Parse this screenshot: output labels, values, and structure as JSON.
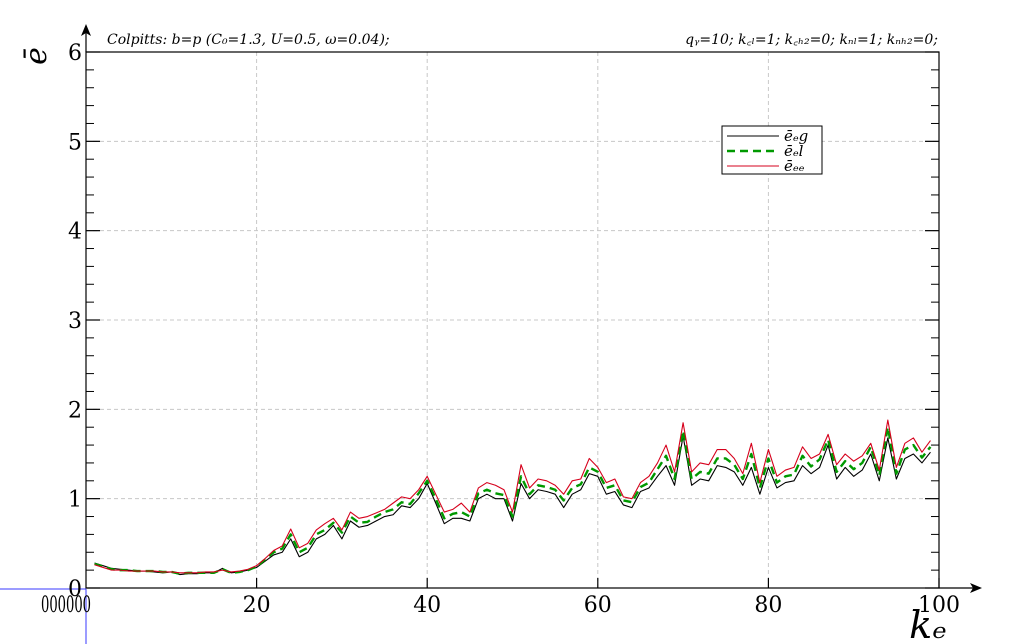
{
  "header": {
    "left": "Colpitts: b=p (C₀=1.3, U=0.5, ω=0.04);",
    "right": "qᵧ=10; k꜀ₗ=1; k꜀ₕ₂=0; kₙₗ=1; kₙₕ₂=0;"
  },
  "origin_labels": "000000",
  "chart_data": {
    "type": "line",
    "xlabel": "kₑ",
    "ylabel": "ē",
    "xlim": [
      0,
      100
    ],
    "ylim": [
      0,
      6
    ],
    "x_ticks": [
      20,
      40,
      60,
      80,
      100
    ],
    "y_ticks": [
      0,
      1,
      2,
      3,
      4,
      5,
      6
    ],
    "grid": true,
    "legend_position": "top-right",
    "x": [
      1,
      2,
      3,
      4,
      5,
      6,
      7,
      8,
      9,
      10,
      11,
      12,
      13,
      14,
      15,
      16,
      17,
      18,
      19,
      20,
      21,
      22,
      23,
      24,
      25,
      26,
      27,
      28,
      29,
      30,
      31,
      32,
      33,
      34,
      35,
      36,
      37,
      38,
      39,
      40,
      41,
      42,
      43,
      44,
      45,
      46,
      47,
      48,
      49,
      50,
      51,
      52,
      53,
      54,
      55,
      56,
      57,
      58,
      59,
      60,
      61,
      62,
      63,
      64,
      65,
      66,
      67,
      68,
      69,
      70,
      71,
      72,
      73,
      74,
      75,
      76,
      77,
      78,
      79,
      80,
      81,
      82,
      83,
      84,
      85,
      86,
      87,
      88,
      89,
      90,
      91,
      92,
      93,
      94,
      95,
      96,
      97,
      98,
      99
    ],
    "series": [
      {
        "name": "ēₑg",
        "color": "#000000",
        "dash": "solid",
        "values": [
          0.28,
          0.25,
          0.22,
          0.21,
          0.2,
          0.19,
          0.19,
          0.18,
          0.17,
          0.18,
          0.15,
          0.16,
          0.16,
          0.17,
          0.17,
          0.22,
          0.17,
          0.18,
          0.2,
          0.23,
          0.3,
          0.37,
          0.4,
          0.55,
          0.35,
          0.4,
          0.55,
          0.6,
          0.7,
          0.55,
          0.75,
          0.68,
          0.7,
          0.75,
          0.8,
          0.82,
          0.92,
          0.9,
          1.0,
          1.17,
          0.95,
          0.72,
          0.78,
          0.78,
          0.75,
          1.0,
          1.05,
          1.0,
          1.0,
          0.75,
          1.17,
          1.0,
          1.1,
          1.08,
          1.05,
          0.9,
          1.05,
          1.1,
          1.28,
          1.25,
          1.05,
          1.08,
          0.93,
          0.9,
          1.08,
          1.12,
          1.25,
          1.37,
          1.15,
          1.7,
          1.15,
          1.22,
          1.2,
          1.37,
          1.35,
          1.3,
          1.15,
          1.35,
          1.05,
          1.35,
          1.12,
          1.18,
          1.2,
          1.37,
          1.28,
          1.35,
          1.6,
          1.22,
          1.35,
          1.25,
          1.32,
          1.5,
          1.2,
          1.68,
          1.22,
          1.45,
          1.5,
          1.4,
          1.52
        ]
      },
      {
        "name": "ēₑl",
        "color": "#009900",
        "dash": "dashed",
        "values": [
          0.27,
          0.24,
          0.21,
          0.2,
          0.2,
          0.19,
          0.19,
          0.19,
          0.18,
          0.18,
          0.16,
          0.17,
          0.17,
          0.17,
          0.17,
          0.21,
          0.17,
          0.18,
          0.2,
          0.24,
          0.32,
          0.4,
          0.44,
          0.6,
          0.4,
          0.45,
          0.6,
          0.65,
          0.73,
          0.62,
          0.8,
          0.73,
          0.74,
          0.8,
          0.85,
          0.88,
          0.96,
          0.94,
          1.06,
          1.2,
          1.0,
          0.78,
          0.83,
          0.85,
          0.8,
          1.06,
          1.1,
          1.06,
          1.04,
          0.8,
          1.25,
          1.05,
          1.15,
          1.13,
          1.1,
          0.98,
          1.12,
          1.16,
          1.35,
          1.3,
          1.12,
          1.15,
          0.98,
          0.96,
          1.13,
          1.18,
          1.33,
          1.48,
          1.22,
          1.76,
          1.22,
          1.3,
          1.28,
          1.45,
          1.45,
          1.38,
          1.22,
          1.5,
          1.12,
          1.45,
          1.18,
          1.25,
          1.27,
          1.48,
          1.36,
          1.44,
          1.66,
          1.3,
          1.42,
          1.33,
          1.4,
          1.58,
          1.26,
          1.8,
          1.28,
          1.55,
          1.6,
          1.46,
          1.58
        ]
      },
      {
        "name": "ēₑₑ",
        "color": "#d6001c",
        "dash": "solid",
        "values": [
          0.26,
          0.23,
          0.2,
          0.2,
          0.19,
          0.19,
          0.19,
          0.19,
          0.18,
          0.18,
          0.17,
          0.17,
          0.17,
          0.18,
          0.18,
          0.2,
          0.18,
          0.19,
          0.21,
          0.25,
          0.33,
          0.42,
          0.47,
          0.66,
          0.45,
          0.5,
          0.65,
          0.72,
          0.78,
          0.65,
          0.85,
          0.78,
          0.8,
          0.84,
          0.88,
          0.95,
          1.02,
          1.0,
          1.1,
          1.25,
          1.05,
          0.85,
          0.88,
          0.95,
          0.85,
          1.12,
          1.18,
          1.15,
          1.1,
          0.85,
          1.38,
          1.12,
          1.22,
          1.2,
          1.15,
          1.05,
          1.2,
          1.22,
          1.45,
          1.35,
          1.18,
          1.22,
          1.02,
          1.0,
          1.18,
          1.25,
          1.4,
          1.6,
          1.3,
          1.85,
          1.3,
          1.4,
          1.38,
          1.55,
          1.55,
          1.45,
          1.28,
          1.62,
          1.18,
          1.55,
          1.25,
          1.32,
          1.35,
          1.58,
          1.45,
          1.5,
          1.72,
          1.38,
          1.5,
          1.42,
          1.48,
          1.62,
          1.32,
          1.88,
          1.35,
          1.62,
          1.68,
          1.52,
          1.65
        ]
      }
    ]
  }
}
